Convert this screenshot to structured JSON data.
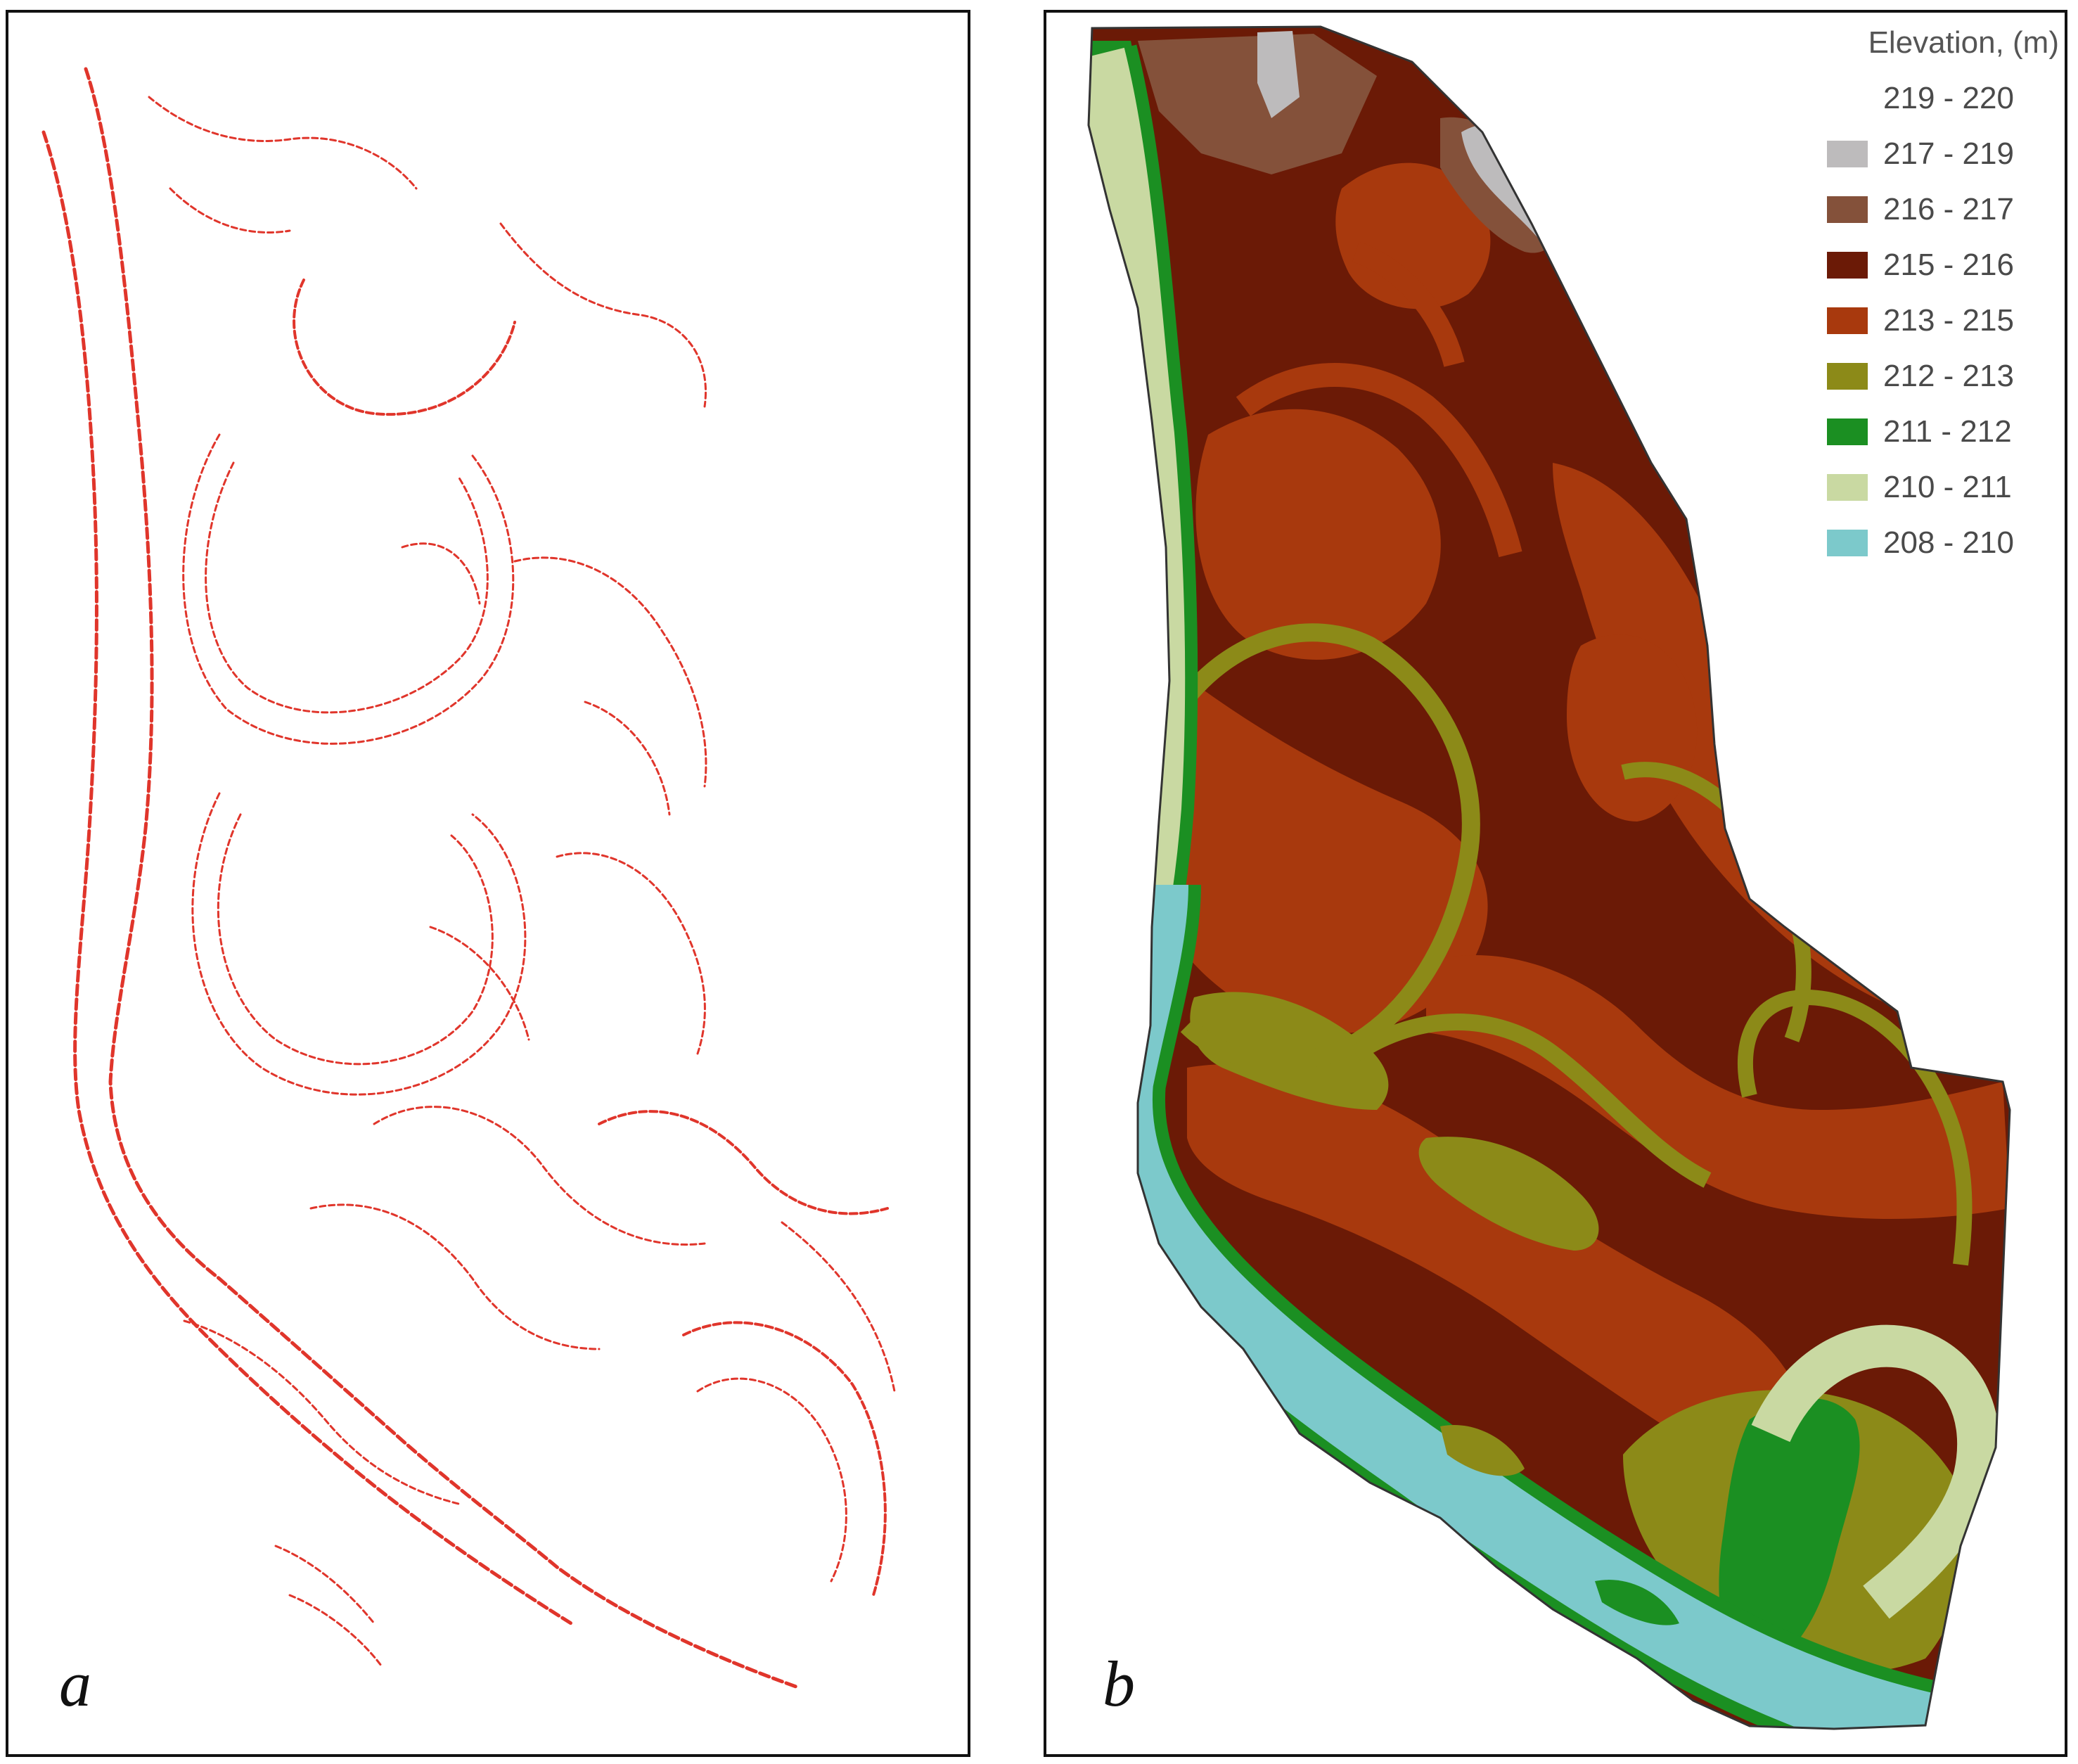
{
  "panels": [
    {
      "letter": "a",
      "content": "contour-lines",
      "line_color": "#e0352b"
    },
    {
      "letter": "b",
      "content": "elevation-map"
    }
  ],
  "legend": {
    "title": "Elevation, (m)",
    "classes": [
      {
        "label": "219 - 220",
        "color": "#ffffff"
      },
      {
        "label": "217 - 219",
        "color": "#bdbbbc"
      },
      {
        "label": "216 - 217",
        "color": "#84513a"
      },
      {
        "label": "215 - 216",
        "color": "#6b1a06"
      },
      {
        "label": "213 - 215",
        "color": "#a8390d"
      },
      {
        "label": "212 - 213",
        "color": "#8c8a18"
      },
      {
        "label": "211 - 212",
        "color": "#1b8f22"
      },
      {
        "label": "210 - 211",
        "color": "#c9d9a2"
      },
      {
        "label": "208 - 210",
        "color": "#7cc9cb"
      }
    ]
  }
}
